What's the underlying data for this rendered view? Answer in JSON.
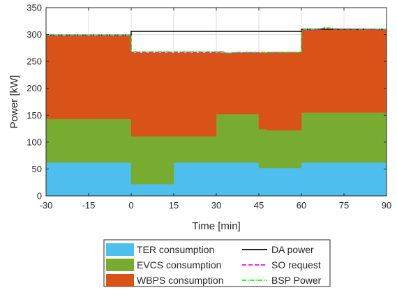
{
  "chart_data": {
    "type": "area",
    "xlabel": "Time [min]",
    "ylabel": "Power [kW]",
    "xlim": [
      -30,
      90
    ],
    "ylim": [
      0,
      350
    ],
    "xticks": [
      -30,
      -15,
      0,
      15,
      30,
      45,
      60,
      75,
      90
    ],
    "yticks": [
      0,
      50,
      100,
      150,
      200,
      250,
      300,
      350
    ],
    "xtick_labels": [
      "-30",
      "-15",
      "0",
      "15",
      "30",
      "45",
      "60",
      "75",
      "90"
    ],
    "ytick_labels": [
      "0",
      "50",
      "100",
      "150",
      "200",
      "250",
      "300",
      "350"
    ],
    "grid": true,
    "legend_placement": "below",
    "stacked_series": [
      {
        "name": "TER consumption",
        "color": "#4DBEEE",
        "steps": [
          {
            "x0": -30,
            "x1": 0,
            "value": 62
          },
          {
            "x0": 0,
            "x1": 15,
            "value": 22
          },
          {
            "x0": 15,
            "x1": 45,
            "value": 62
          },
          {
            "x0": 45,
            "x1": 60,
            "value": 52
          },
          {
            "x0": 60,
            "x1": 90,
            "value": 62
          }
        ]
      },
      {
        "name": "EVCS consumption",
        "color": "#77AC30",
        "steps": [
          {
            "x0": -30,
            "x1": 0,
            "value": 81
          },
          {
            "x0": 0,
            "x1": 15,
            "value": 89
          },
          {
            "x0": 15,
            "x1": 30,
            "value": 49
          },
          {
            "x0": 30,
            "x1": 45,
            "value": 90
          },
          {
            "x0": 45,
            "x1": 48,
            "value": 72
          },
          {
            "x0": 48,
            "x1": 60,
            "value": 70
          },
          {
            "x0": 60,
            "x1": 90,
            "value": 93
          }
        ]
      },
      {
        "name": "WBPS consumption",
        "color": "#D95319",
        "steps": [
          {
            "x0": -30,
            "x1": 0,
            "value": 154
          },
          {
            "x0": 0,
            "x1": 15,
            "value": 155
          },
          {
            "x0": 15,
            "x1": 30,
            "value": 155
          },
          {
            "x0": 30,
            "x1": 45,
            "value": 114
          },
          {
            "x0": 45,
            "x1": 48,
            "value": 142
          },
          {
            "x0": 48,
            "x1": 60,
            "value": 145
          },
          {
            "x0": 60,
            "x1": 90,
            "value": 155
          }
        ]
      }
    ],
    "line_series": [
      {
        "name": "DA power",
        "color": "#000000",
        "dash": "solid",
        "points": [
          [
            -30,
            299
          ],
          [
            0,
            299
          ],
          [
            0,
            306
          ],
          [
            60,
            306
          ],
          [
            60,
            310
          ],
          [
            90,
            310
          ]
        ]
      },
      {
        "name": "SO request",
        "color": "#FF00FF",
        "dash": "dashed",
        "points": [
          [
            -30,
            298
          ],
          [
            0,
            298
          ],
          [
            0,
            267
          ],
          [
            30,
            267
          ],
          [
            32,
            268
          ],
          [
            34,
            264
          ],
          [
            36,
            266
          ],
          [
            60,
            267
          ],
          [
            60,
            308
          ],
          [
            66,
            309
          ],
          [
            68,
            312
          ],
          [
            72,
            310
          ],
          [
            90,
            309
          ]
        ]
      },
      {
        "name": "BSP Power",
        "color": "#00FF00",
        "dash": "dashdot",
        "points": [
          [
            -30,
            299
          ],
          [
            0,
            299
          ],
          [
            0,
            268
          ],
          [
            30,
            268
          ],
          [
            32,
            269
          ],
          [
            34,
            264
          ],
          [
            36,
            267
          ],
          [
            60,
            267
          ],
          [
            60,
            309
          ],
          [
            66,
            310
          ],
          [
            68,
            313
          ],
          [
            72,
            311
          ],
          [
            90,
            310
          ]
        ]
      }
    ]
  },
  "legend": {
    "left": [
      {
        "name": "TER consumption",
        "color": "#4DBEEE"
      },
      {
        "name": "EVCS consumption",
        "color": "#77AC30"
      },
      {
        "name": "WBPS consumption",
        "color": "#D95319"
      }
    ],
    "right": [
      {
        "name": "DA power",
        "color": "#000000",
        "dash": "solid"
      },
      {
        "name": "SO request",
        "color": "#FF00FF",
        "dash": "dashed"
      },
      {
        "name": "BSP Power",
        "color": "#00FF00",
        "dash": "dashdot"
      }
    ]
  }
}
